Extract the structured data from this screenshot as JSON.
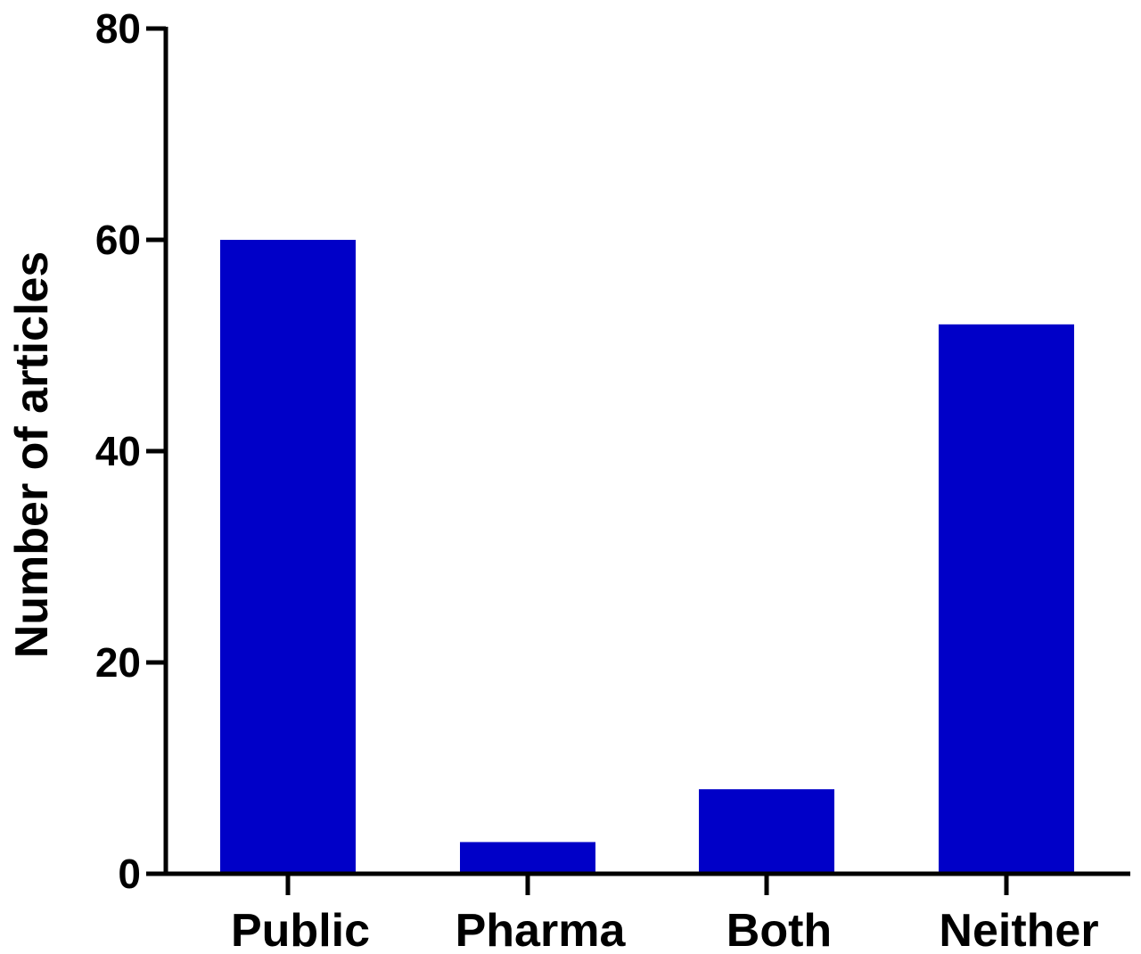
{
  "chart_data": {
    "type": "bar",
    "categories": [
      "Public",
      "Pharma",
      "Both",
      "Neither"
    ],
    "values": [
      60,
      3,
      8,
      52
    ],
    "title": "",
    "xlabel": "",
    "ylabel": "Number of articles",
    "ylim": [
      0,
      80
    ],
    "yticks": [
      0,
      20,
      40,
      60,
      80
    ],
    "grid": false,
    "legend": "none",
    "bar_color": "#0000c8",
    "axis_color": "#000000"
  }
}
